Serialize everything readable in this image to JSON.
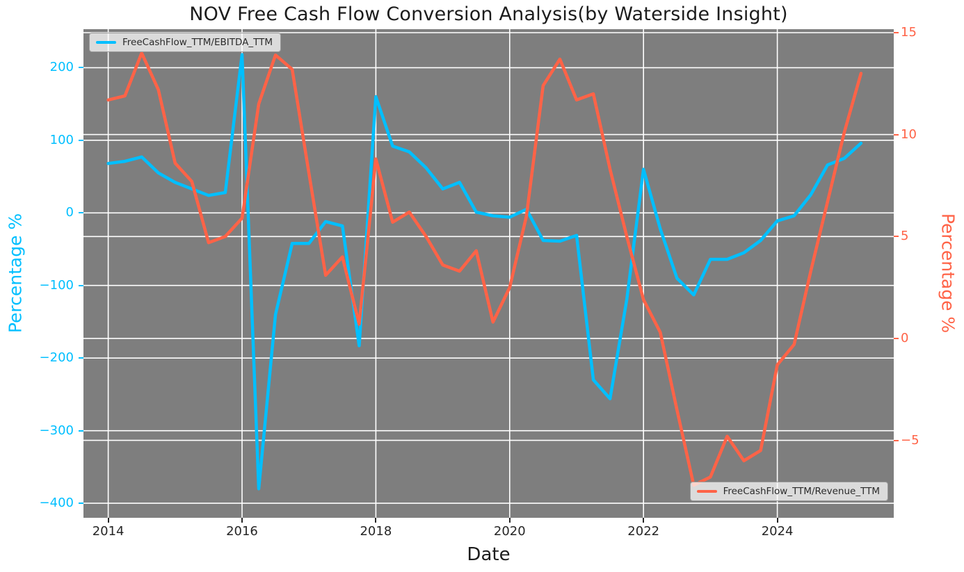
{
  "chart_data": {
    "type": "line",
    "title": "NOV Free Cash Flow Conversion Analysis(by Waterside Insight)",
    "xlabel": "Date",
    "ylabel_left": "Percentage %",
    "ylabel_right": "Percentage %",
    "plot_bg_color": "#7e7e7e",
    "grid_color": "#ffffff",
    "text_color": "#262626",
    "grid": "on",
    "x_range": [
      2013.63,
      2025.74
    ],
    "x_ticks": [
      2014,
      2016,
      2018,
      2020,
      2022,
      2024
    ],
    "left_axis": {
      "color": "#00BFFF",
      "ticks": [
        200,
        100,
        0,
        -100,
        -200,
        -300,
        -400
      ],
      "range": [
        -420,
        253
      ]
    },
    "right_axis": {
      "color": "#FF6347",
      "ticks": [
        15,
        10,
        5,
        0,
        -5
      ],
      "range": [
        -8.8,
        15.17
      ]
    },
    "legend": {
      "upper_left": "FreeCashFlow_TTM/EBITDA_TTM",
      "lower_right": "FreeCashFlow_TTM/Revenue_TTM"
    },
    "series": [
      {
        "name": "FreeCashFlow_TTM/EBITDA_TTM",
        "axis": "left",
        "color": "#00BFFF",
        "x": [
          2014.0,
          2014.25,
          2014.5,
          2014.75,
          2015.0,
          2015.25,
          2015.5,
          2015.75,
          2016.0,
          2016.25,
          2016.5,
          2016.75,
          2017.0,
          2017.25,
          2017.5,
          2017.75,
          2018.0,
          2018.25,
          2018.5,
          2018.75,
          2019.0,
          2019.25,
          2019.5,
          2019.75,
          2020.0,
          2020.25,
          2020.5,
          2020.75,
          2021.0,
          2021.25,
          2021.5,
          2021.75,
          2022.0,
          2022.25,
          2022.5,
          2022.75,
          2023.0,
          2023.25,
          2023.5,
          2023.75,
          2024.0,
          2024.25,
          2024.5,
          2024.75,
          2025.0,
          2025.25
        ],
        "values": [
          68,
          71,
          77,
          55,
          42,
          33,
          24,
          28,
          218,
          -380,
          -140,
          -42,
          -42,
          -12,
          -18,
          -183,
          160,
          92,
          84,
          62,
          33,
          42,
          1,
          -4,
          -6,
          5,
          -38,
          -39,
          -31,
          -230,
          -256,
          -119,
          60,
          -22,
          -90,
          -113,
          -64,
          -64,
          -55,
          -38,
          -11,
          -4,
          25,
          66,
          75,
          96
        ]
      },
      {
        "name": "FreeCashFlow_TTM/Revenue_TTM",
        "axis": "right",
        "color": "#FF6347",
        "x": [
          2014.0,
          2014.25,
          2014.5,
          2014.75,
          2015.0,
          2015.25,
          2015.5,
          2015.75,
          2016.0,
          2016.25,
          2016.5,
          2016.75,
          2017.0,
          2017.25,
          2017.5,
          2017.75,
          2018.0,
          2018.25,
          2018.5,
          2018.75,
          2019.0,
          2019.25,
          2019.5,
          2019.75,
          2020.0,
          2020.25,
          2020.5,
          2020.75,
          2021.0,
          2021.25,
          2021.5,
          2021.75,
          2022.0,
          2022.25,
          2022.5,
          2022.75,
          2023.0,
          2023.25,
          2023.5,
          2023.75,
          2024.0,
          2024.25,
          2024.5,
          2024.75,
          2025.0,
          2025.25
        ],
        "values": [
          11.7,
          11.9,
          14.0,
          12.2,
          8.6,
          7.7,
          4.7,
          5.0,
          5.9,
          11.5,
          13.9,
          13.2,
          8.1,
          3.1,
          4.0,
          0.7,
          8.8,
          5.7,
          6.2,
          5.0,
          3.6,
          3.3,
          4.3,
          0.8,
          2.5,
          6.0,
          12.4,
          13.7,
          11.7,
          12.0,
          8.3,
          5.0,
          1.9,
          0.3,
          -3.5,
          -7.2,
          -6.8,
          -4.8,
          -6.0,
          -5.5,
          -1.3,
          -0.3,
          3.3,
          6.7,
          10.1,
          13.0
        ]
      }
    ]
  }
}
